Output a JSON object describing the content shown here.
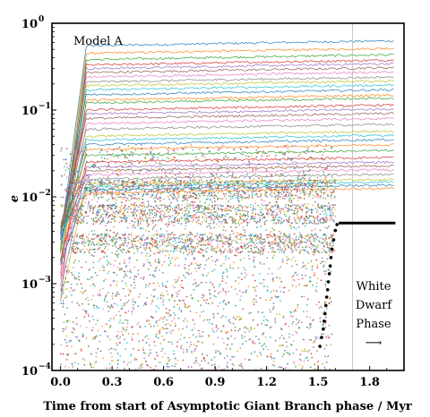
{
  "chart_data": {
    "type": "scatter",
    "title": "",
    "xlabel": "Time from start of Asymptotic Giant Branch phase / Myr",
    "ylabel": "e",
    "xlim": [
      -0.05,
      2.0
    ],
    "ylim": [
      0.0001,
      1.0
    ],
    "yscale": "log",
    "x_ticks": [
      {
        "value": 0.0,
        "label": "0.0"
      },
      {
        "value": 0.3,
        "label": "0.3"
      },
      {
        "value": 0.6,
        "label": "0.6"
      },
      {
        "value": 0.9,
        "label": "0.9"
      },
      {
        "value": 1.2,
        "label": "1.2"
      },
      {
        "value": 1.5,
        "label": "1.5"
      },
      {
        "value": 1.8,
        "label": "1.8"
      }
    ],
    "y_ticks": [
      {
        "value": 0.0001,
        "base": "10",
        "exp": "−4"
      },
      {
        "value": 0.001,
        "base": "10",
        "exp": "−3"
      },
      {
        "value": 0.01,
        "base": "10",
        "exp": "−2"
      },
      {
        "value": 0.1,
        "base": "10",
        "exp": "−1"
      },
      {
        "value": 1.0,
        "base": "10",
        "exp": "0"
      }
    ],
    "grid": false,
    "legend": "none",
    "wd_phase_start": 1.7,
    "model_label": "Model A",
    "wd_label_lines": [
      "White",
      "Dwarf",
      "Phase",
      "⟶"
    ],
    "highlight_track": {
      "color": "#000000",
      "points": [
        [
          1.51,
          0.00019
        ],
        [
          1.52,
          0.00024
        ],
        [
          1.53,
          0.0003
        ],
        [
          1.535,
          0.00037
        ],
        [
          1.54,
          0.00045
        ],
        [
          1.545,
          0.00056
        ],
        [
          1.55,
          0.0007
        ],
        [
          1.555,
          0.00085
        ],
        [
          1.56,
          0.00105
        ],
        [
          1.565,
          0.0013
        ],
        [
          1.57,
          0.0016
        ],
        [
          1.575,
          0.002
        ],
        [
          1.58,
          0.0025
        ],
        [
          1.59,
          0.0032
        ],
        [
          1.6,
          0.0041
        ],
        [
          1.61,
          0.0048
        ],
        [
          1.62,
          0.005
        ],
        [
          1.95,
          0.005
        ]
      ]
    },
    "band_levels": [
      0.55,
      0.45,
      0.38,
      0.33,
      0.3,
      0.27,
      0.24,
      0.21,
      0.19,
      0.17,
      0.15,
      0.13,
      0.12,
      0.1,
      0.09,
      0.08,
      0.07,
      0.06,
      0.05,
      0.045,
      0.04,
      0.035,
      0.03,
      0.025,
      0.022,
      0.02,
      0.018,
      0.016,
      0.014,
      0.013,
      0.012,
      0.011
    ],
    "palette": [
      "#1f77b4",
      "#ff7f0e",
      "#2ca02c",
      "#d62728",
      "#9467bd",
      "#8c564b",
      "#e377c2",
      "#7f7f7f",
      "#bcbd22",
      "#17becf"
    ]
  }
}
